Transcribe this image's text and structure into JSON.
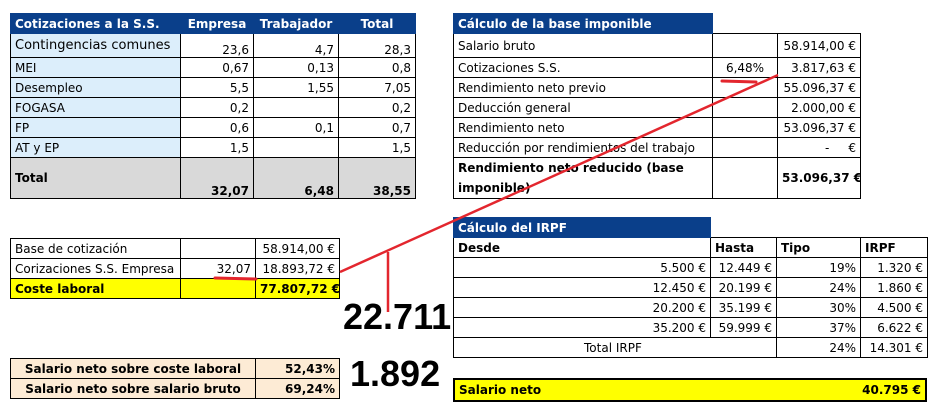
{
  "cotizaciones": {
    "headers": [
      "Cotizaciones a la S.S.",
      "Empresa",
      "Trabajador",
      "Total"
    ],
    "rows": [
      [
        "Contingencias comunes",
        "23,6",
        "4,7",
        "28,3"
      ],
      [
        "MEI",
        "0,67",
        "0,13",
        "0,8"
      ],
      [
        "Desempleo",
        "5,5",
        "1,55",
        "7,05"
      ],
      [
        "FOGASA",
        "0,2",
        "",
        "0,2"
      ],
      [
        "FP",
        "0,6",
        "0,1",
        "0,7"
      ],
      [
        "AT y EP",
        "1,5",
        "",
        "1,5"
      ]
    ],
    "total": [
      "Total",
      "32,07",
      "6,48",
      "38,55"
    ]
  },
  "base": {
    "title": "Cálculo de la base imponible",
    "rows": [
      [
        "Salario bruto",
        "",
        "58.914,00 €"
      ],
      [
        "Cotizaciones S.S.",
        "6,48%",
        "3.817,63 €"
      ],
      [
        "Rendimiento neto previo",
        "",
        "55.096,37 €"
      ],
      [
        "Deducción general",
        "",
        "2.000,00 €"
      ],
      [
        "Rendimiento neto",
        "",
        "53.096,37 €"
      ],
      [
        "Reducción por rendimientos del trabajo",
        "",
        "-     €"
      ]
    ],
    "final": [
      "Rendimiento neto reducido (base imponible)",
      "",
      "53.096,37 €"
    ]
  },
  "coste": {
    "rows": [
      [
        "Base de cotización",
        "",
        "58.914,00 €"
      ],
      [
        "Corizaciones S.S. Empresa",
        "32,07",
        "18.893,72 €"
      ]
    ],
    "total": [
      "Coste laboral",
      "",
      "77.807,72 €"
    ]
  },
  "ratios": [
    [
      "Salario neto sobre coste laboral",
      "52,43%"
    ],
    [
      "Salario neto sobre salario bruto",
      "69,24%"
    ]
  ],
  "annotations": {
    "big1": "22.711",
    "big2": "1.892",
    "color": "#e3262e"
  },
  "irpf": {
    "title": "Cálculo del IRPF",
    "headers": [
      "Desde",
      "Hasta",
      "Tipo",
      "IRPF"
    ],
    "rows": [
      [
        "5.500 €",
        "12.449 €",
        "19%",
        "1.320 €"
      ],
      [
        "12.450 €",
        "20.199 €",
        "24%",
        "1.860 €"
      ],
      [
        "20.200 €",
        "35.199 €",
        "30%",
        "4.500 €"
      ],
      [
        "35.200 €",
        "59.999 €",
        "37%",
        "6.622 €"
      ]
    ],
    "total": [
      "Total IRPF",
      "24%",
      "14.301 €"
    ]
  },
  "neto": [
    "Salario neto",
    "40.795 €"
  ]
}
